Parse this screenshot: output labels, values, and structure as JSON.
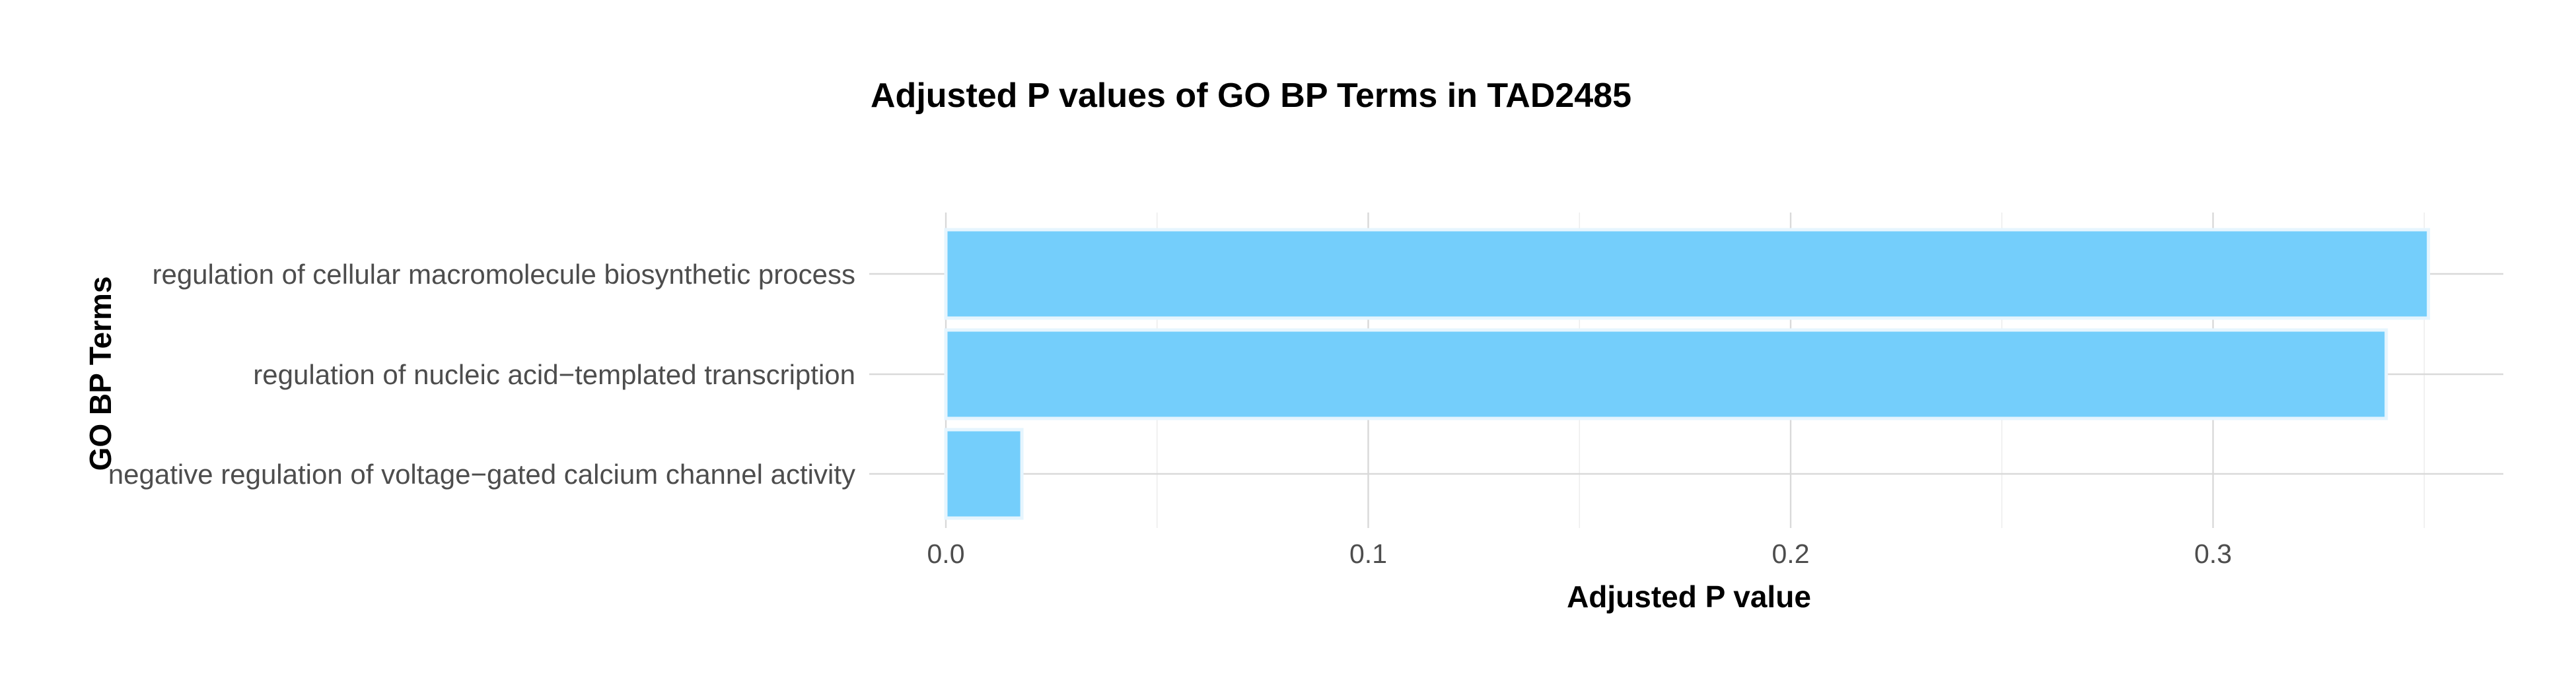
{
  "chart_data": {
    "type": "bar",
    "orientation": "horizontal",
    "title": "Adjusted P values of GO BP Terms in TAD2485",
    "xlabel": "Adjusted P value",
    "ylabel": "GO BP Terms",
    "categories": [
      "regulation of cellular macromolecule biosynthetic process",
      "regulation of nucleic acid−templated transcription",
      "negative regulation of voltage−gated calcium channel activity"
    ],
    "values": [
      0.351,
      0.341,
      0.018
    ],
    "xlim": [
      0,
      0.3695
    ],
    "x_ticks": [
      0.0,
      0.1,
      0.2,
      0.3
    ],
    "x_tick_labels": [
      "0.0",
      "0.1",
      "0.2",
      "0.3"
    ],
    "x_minor_ticks": [
      0.05,
      0.15,
      0.25,
      0.35
    ],
    "grid": true,
    "legend": "none",
    "colors": {
      "bar_fill": "#74CEFB",
      "bar_stroke": "#E6F5FE"
    }
  }
}
